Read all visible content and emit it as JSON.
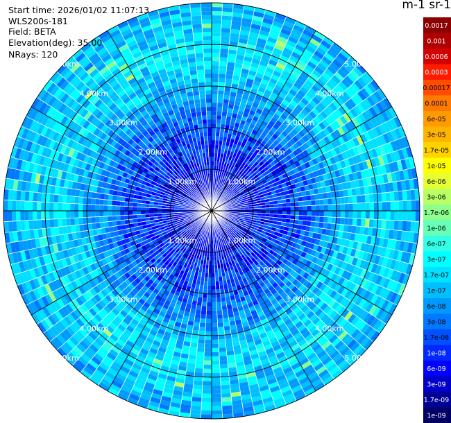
{
  "header": {
    "start_time": "Start time: 2026/01/02 11:07:13",
    "instrument": "WLS200s-181",
    "field": "Field: BETA",
    "elevation": "Elevation(deg): 35.00",
    "nrays": "NRays: 120"
  },
  "chart_data": {
    "type": "heatmap",
    "projection": "polar-ppi",
    "field": "BETA",
    "elevation_deg": 35.0,
    "n_rays": 120,
    "range_rings_km": [
      1,
      2,
      3,
      4,
      5
    ],
    "range_ring_labels": [
      "1.00km",
      "2.00km",
      "3.00km",
      "4.00km",
      "5.00km"
    ],
    "max_range_km": 5.0,
    "spokes_deg": [
      0,
      30,
      60,
      90,
      120,
      150,
      180,
      210,
      240,
      270,
      300,
      330
    ],
    "value_profile": {
      "description_range_km": [
        0.0,
        0.5,
        1.0,
        1.5,
        2.0,
        2.5,
        3.0,
        3.5,
        4.0,
        4.5,
        5.0
      ],
      "log10_beta": [
        -8.3,
        -8.2,
        -8.1,
        -7.9,
        -7.7,
        -7.4,
        -7.0,
        -6.8,
        -6.7,
        -6.9,
        -7.1
      ]
    },
    "colorbar": {
      "unit": "m-1 sr-1",
      "tick_labels": [
        "0.0017",
        "0.001",
        "0.0006",
        "0.0003",
        "0.00017",
        "0.0001",
        "6e-05",
        "3e-05",
        "1.7e-05",
        "1e-05",
        "6e-06",
        "3e-06",
        "1.7e-06",
        "1e-06",
        "6e-07",
        "3e-07",
        "1.7e-07",
        "1e-07",
        "6e-08",
        "3e-08",
        "1.7e-08",
        "1e-08",
        "6e-09",
        "3e-09",
        "1.7e-09",
        "1e-09"
      ],
      "colors": [
        "#8b0000",
        "#b00000",
        "#d40000",
        "#ff1a00",
        "#ff4d00",
        "#ff7a00",
        "#ff9a00",
        "#ffb400",
        "#ffd200",
        "#ffff00",
        "#e6ff33",
        "#b8ff66",
        "#8cff8c",
        "#66ffb8",
        "#33ffe6",
        "#00ffff",
        "#00e0ff",
        "#00bfff",
        "#009aff",
        "#0078ff",
        "#0050ff",
        "#0028ff",
        "#0000ff",
        "#0000c8",
        "#000096",
        "#000064"
      ]
    }
  }
}
